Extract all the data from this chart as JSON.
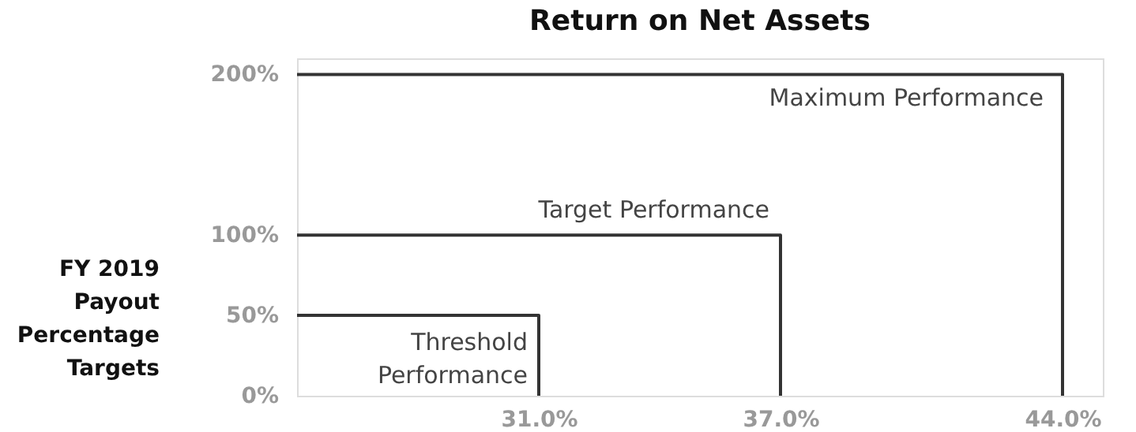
{
  "chart_data": {
    "type": "line",
    "title": "Return on Net Assets",
    "ylabel": "FY 2019\nPayout\nPercentage\nTargets",
    "xlim": [
      25,
      45
    ],
    "ylim": [
      0,
      210
    ],
    "xticks": [
      {
        "value": 31,
        "label": "31.0%"
      },
      {
        "value": 37,
        "label": "37.0%"
      },
      {
        "value": 44,
        "label": "44.0%"
      }
    ],
    "yticks": [
      {
        "value": 0,
        "label": "0%"
      },
      {
        "value": 50,
        "label": "50%"
      },
      {
        "value": 100,
        "label": "100%"
      },
      {
        "value": 200,
        "label": "200%"
      }
    ],
    "series": [
      {
        "color": "#333333",
        "x": [
          25,
          31,
          31
        ],
        "values": [
          50,
          50,
          0
        ]
      },
      {
        "color": "#333333",
        "x": [
          25,
          37,
          37
        ],
        "values": [
          100,
          100,
          0
        ]
      },
      {
        "color": "#333333",
        "x": [
          25,
          44,
          44
        ],
        "values": [
          200,
          200,
          0
        ]
      }
    ],
    "annotations": [
      {
        "text": "Threshold\nPerformance",
        "x": 31,
        "y": 50
      },
      {
        "text": "Target Performance",
        "x": 37,
        "y": 100
      },
      {
        "text": "Maximum Performance",
        "x": 44,
        "y": 200
      }
    ],
    "grid": false,
    "marker": "none",
    "line_style": "solid"
  }
}
